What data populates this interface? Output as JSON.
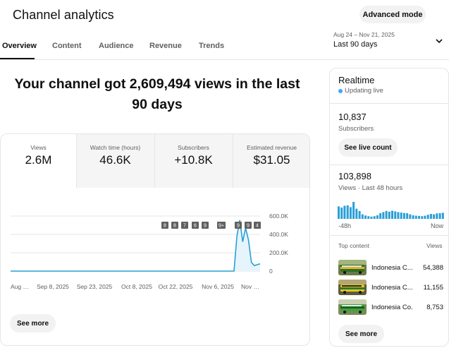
{
  "header": {
    "title": "Channel analytics",
    "advanced_mode_label": "Advanced mode"
  },
  "tabs": [
    {
      "label": "Overview",
      "active": true
    },
    {
      "label": "Content",
      "active": false
    },
    {
      "label": "Audience",
      "active": false
    },
    {
      "label": "Revenue",
      "active": false
    },
    {
      "label": "Trends",
      "active": false
    }
  ],
  "date_filter": {
    "range": "Aug 24 – Nov 21, 2025",
    "label": "Last 90 days",
    "icon": "chevron-down-icon"
  },
  "headline": "Your channel got 2,609,494 views in the last 90 days",
  "metrics": [
    {
      "label": "Views",
      "value": "2.6M",
      "active": true
    },
    {
      "label": "Watch time (hours)",
      "value": "46.6K",
      "active": false
    },
    {
      "label": "Subscribers",
      "value": "+10.8K",
      "active": false
    },
    {
      "label": "Estimated revenue",
      "value": "$31.05",
      "active": false
    }
  ],
  "chart_data": {
    "type": "area",
    "series": [
      {
        "values": [
          0,
          0,
          0,
          0,
          0,
          0,
          0,
          0,
          0,
          0,
          0,
          0,
          0,
          0,
          0,
          0,
          0,
          0,
          0,
          0,
          0,
          0,
          0,
          0,
          0,
          0,
          0,
          0,
          0,
          0,
          0,
          0,
          0,
          0,
          0,
          0,
          0,
          0,
          0,
          0,
          0,
          0,
          0,
          0,
          0,
          0,
          0,
          0,
          0,
          0,
          0,
          0,
          0,
          0,
          0,
          0,
          0,
          0,
          0,
          0,
          0,
          0,
          0,
          0,
          0,
          0,
          0,
          0,
          0,
          0,
          0,
          0,
          0,
          0,
          0,
          0,
          0,
          0,
          380000,
          555000,
          320000,
          470000,
          340000,
          95000,
          60000,
          70000,
          80000
        ]
      }
    ],
    "x_tick_labels": [
      "Aug …",
      "Sep 8, 2025",
      "Sep 23, 2025",
      "Oct 8, 2025",
      "Oct 22, 2025",
      "Nov 6, 2025",
      "Nov …"
    ],
    "y_tick_labels": [
      "600.0K",
      "400.0K",
      "200.0K",
      "0"
    ],
    "ylim": [
      0,
      600000
    ],
    "grid": true,
    "marker_badges": [
      "8",
      "8",
      "7",
      "6",
      "9",
      "9+",
      "9",
      "9",
      "4"
    ],
    "color": "#2a9fd6",
    "fill_color": "#e6f4fb"
  },
  "see_more_label": "See more",
  "realtime": {
    "title": "Realtime",
    "status": "Updating live",
    "status_color": "#3ea6ff",
    "subscribers_value": "10,837",
    "subscribers_label": "Subscribers",
    "see_live_count_label": "See live count",
    "views_value": "103,898",
    "views_label": "Views · Last 48 hours",
    "axis_start": "-48h",
    "axis_end": "Now",
    "bar_data": [
      0.55,
      0.5,
      0.58,
      0.6,
      0.52,
      0.75,
      0.45,
      0.35,
      0.2,
      0.15,
      0.12,
      0.1,
      0.12,
      0.16,
      0.25,
      0.3,
      0.35,
      0.32,
      0.36,
      0.33,
      0.3,
      0.28,
      0.26,
      0.25,
      0.2,
      0.16,
      0.14,
      0.13,
      0.12,
      0.14,
      0.18,
      0.22,
      0.2,
      0.24,
      0.25,
      0.27
    ],
    "bar_color": "#2a9fd6",
    "top_content_header": "Top content",
    "views_header": "Views",
    "top_content": [
      {
        "title": "Indonesia C...",
        "views": "54,388",
        "thumb": "bus-thumbnail-icon"
      },
      {
        "title": "Indonesia C...",
        "views": "11,155",
        "thumb": "bus-thumbnail-icon"
      },
      {
        "title": "Indonesia Co...",
        "views": "8,753",
        "thumb": "bus-thumbnail-icon"
      }
    ],
    "see_more_label": "See more"
  }
}
